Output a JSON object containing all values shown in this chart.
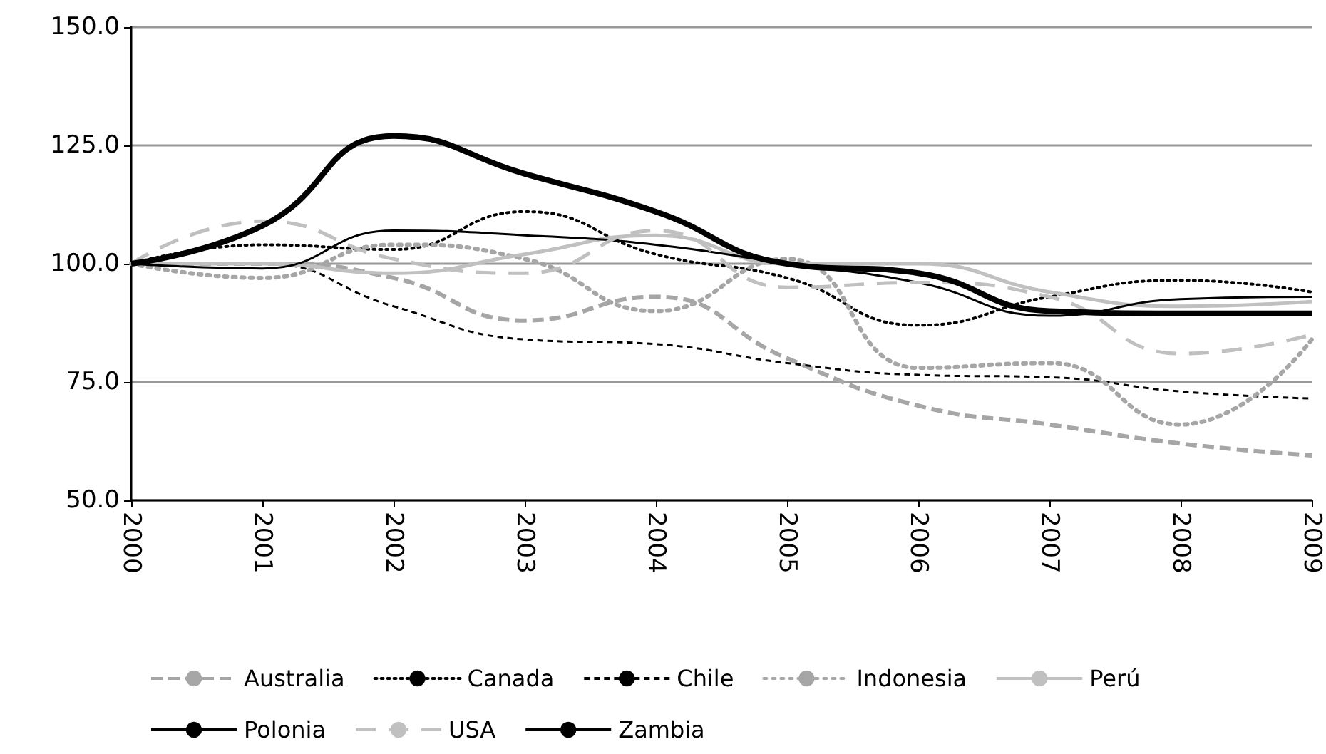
{
  "chart_data": {
    "type": "line",
    "categories": [
      "2000",
      "2001",
      "2002",
      "2003",
      "2004",
      "2005",
      "2006",
      "2007",
      "2008",
      "2009"
    ],
    "series": [
      {
        "name": "Australia",
        "color": "#a6a6a6",
        "line_style": "dashed",
        "values": [
          100,
          100,
          97,
          88,
          93,
          80,
          70,
          66,
          62,
          59.5
        ]
      },
      {
        "name": "Canada",
        "color": "#000000",
        "line_style": "dotted",
        "values": [
          100,
          104,
          103,
          111,
          102,
          97,
          87,
          93,
          96.5,
          94
        ]
      },
      {
        "name": "Chile",
        "color": "#000000",
        "line_style": "dashed",
        "values": [
          100,
          100,
          91,
          84,
          83,
          79,
          76.5,
          76,
          73,
          71.5
        ]
      },
      {
        "name": "Indonesia",
        "color": "#a6a6a6",
        "line_style": "dotted",
        "values": [
          100,
          97,
          104,
          101,
          90,
          101,
          78,
          79,
          66,
          84
        ]
      },
      {
        "name": "Perú",
        "color": "#c0c0c0",
        "line_style": "solid",
        "values": [
          100,
          100,
          98,
          102,
          106,
          100,
          100,
          94,
          91,
          92
        ]
      },
      {
        "name": "Polonia",
        "color": "#000000",
        "line_style": "solid",
        "values": [
          100,
          99,
          107,
          106,
          104,
          100,
          96,
          89,
          92.5,
          93
        ]
      },
      {
        "name": "USA",
        "color": "#c0c0c0",
        "line_style": "dashed",
        "values": [
          100,
          109,
          101,
          98,
          107,
          95,
          96,
          93,
          81,
          85
        ]
      },
      {
        "name": "Zambia",
        "color": "#000000",
        "line_style": "solid",
        "values": [
          100,
          108,
          127,
          119,
          111,
          100,
          98,
          90,
          89.5,
          89.5
        ]
      }
    ],
    "ylim": [
      50,
      150
    ],
    "yticks": [
      {
        "value": 50,
        "label": "50.0"
      },
      {
        "value": 75,
        "label": "75.0"
      },
      {
        "value": 100,
        "label": "100.0"
      },
      {
        "value": 125,
        "label": "125.0"
      },
      {
        "value": 150,
        "label": "150.0"
      }
    ],
    "grid": "y",
    "legend": "bottom",
    "marker": "none"
  }
}
